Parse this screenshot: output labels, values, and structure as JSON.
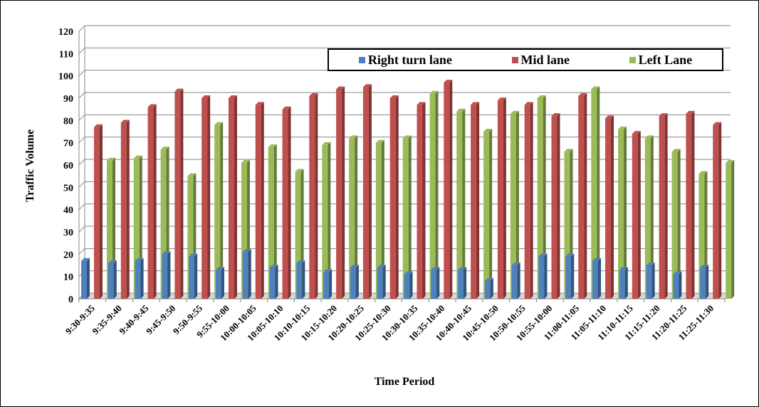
{
  "chart_data": {
    "type": "bar",
    "title": "",
    "xlabel": "Time Period",
    "ylabel": "Traffic Volume",
    "ylim": [
      0,
      120
    ],
    "yticks": [
      0,
      10,
      20,
      30,
      40,
      50,
      60,
      70,
      80,
      90,
      100,
      110,
      120
    ],
    "grid": true,
    "legend_position": "top-right",
    "categories": [
      "9:30-9:35",
      "9:35-9:40",
      "9:40-9:45",
      "9:45-9:50",
      "9:50-9:55",
      "9:55-10:00",
      "10:00-10:05",
      "10:05-10:10",
      "10:10-10:15",
      "10:15-10:20",
      "10:20-10:25",
      "10:25-10:30",
      "10:30-10:35",
      "10:35-10:40",
      "10:40-10:45",
      "10:45-10:50",
      "10:50-10:55",
      "10:55-10:00",
      "11:00-11:05",
      "11:05-11:10",
      "11:10-11:15",
      "11:15-11:20",
      "11:20-11:25",
      "11:25-11:30"
    ],
    "series": [
      {
        "name": "Right turn lane",
        "color": "#4f81bd",
        "values": [
          17,
          16,
          17,
          20,
          19,
          13,
          21,
          14,
          16,
          12,
          14,
          14,
          11,
          13,
          13,
          8,
          15,
          19,
          19,
          17,
          13,
          15,
          11,
          14
        ]
      },
      {
        "name": "Mid lane",
        "color": "#c0504d",
        "values": [
          77,
          79,
          86,
          93,
          90,
          90,
          87,
          85,
          91,
          94,
          95,
          90,
          87,
          97,
          87,
          89,
          87,
          82,
          91,
          81,
          74,
          82,
          83,
          78
        ]
      },
      {
        "name": "Left Lane",
        "color": "#9bbb59",
        "values": [
          62,
          63,
          67,
          55,
          78,
          61,
          68,
          57,
          69,
          72,
          70,
          72,
          92,
          84,
          75,
          83,
          90,
          66,
          94,
          76,
          72,
          66,
          56,
          61
        ]
      }
    ]
  }
}
